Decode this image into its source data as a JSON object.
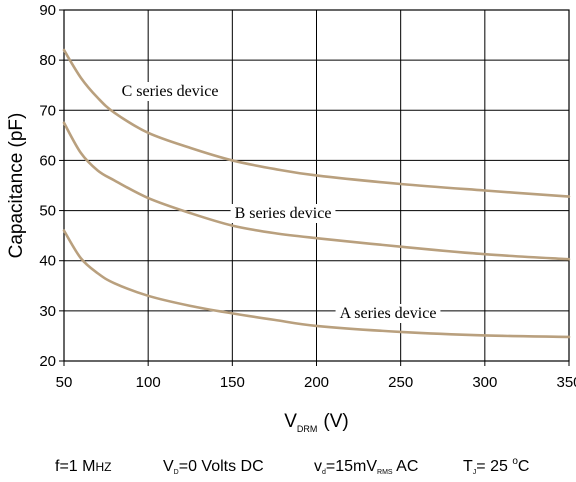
{
  "chart_data": {
    "type": "line",
    "title": "",
    "xlabel": {
      "main": "V",
      "sub": "DRM",
      "unit": "(V)"
    },
    "ylabel": "Capacitance (pF)",
    "xlim": [
      50,
      350
    ],
    "ylim": [
      20,
      90
    ],
    "x_ticks": [
      50,
      100,
      150,
      200,
      250,
      300,
      350
    ],
    "y_ticks": [
      20,
      30,
      40,
      50,
      60,
      70,
      80,
      90
    ],
    "grid": true,
    "series": [
      {
        "name": "C series device",
        "x": [
          50,
          60,
          70,
          80,
          100,
          125,
          150,
          175,
          200,
          250,
          300,
          350
        ],
        "y": [
          82,
          76.5,
          72.5,
          69.5,
          65.5,
          62.5,
          60,
          58.3,
          57,
          55.3,
          54,
          52.8
        ]
      },
      {
        "name": "B series device",
        "x": [
          50,
          60,
          70,
          80,
          100,
          125,
          150,
          175,
          200,
          250,
          300,
          350
        ],
        "y": [
          67.5,
          61.5,
          58,
          56,
          52.5,
          49.5,
          47,
          45.5,
          44.5,
          42.8,
          41.3,
          40.3
        ]
      },
      {
        "name": "A series device",
        "x": [
          50,
          60,
          70,
          80,
          100,
          125,
          150,
          175,
          200,
          250,
          300,
          350
        ],
        "y": [
          46,
          40.5,
          37.5,
          35.5,
          33,
          31,
          29.5,
          28.2,
          27,
          25.8,
          25.1,
          24.8
        ]
      }
    ],
    "line_color": "#b9a07e",
    "grid_color": "#000000"
  },
  "conditions": {
    "freq": {
      "prefix": "f=1 M",
      "smallcaps": "HZ"
    },
    "vd_dc": {
      "main": "V",
      "sub": "D",
      "rest": "=0 Volts DC"
    },
    "vd_ac": {
      "main": "v",
      "sub1": "d",
      "mid": "=15mV",
      "sub2": "RMS",
      "rest": " AC"
    },
    "tj": {
      "main": "T",
      "sub": "J",
      "mid": "= 25 ",
      "sup": "o",
      "rest": "C"
    }
  }
}
